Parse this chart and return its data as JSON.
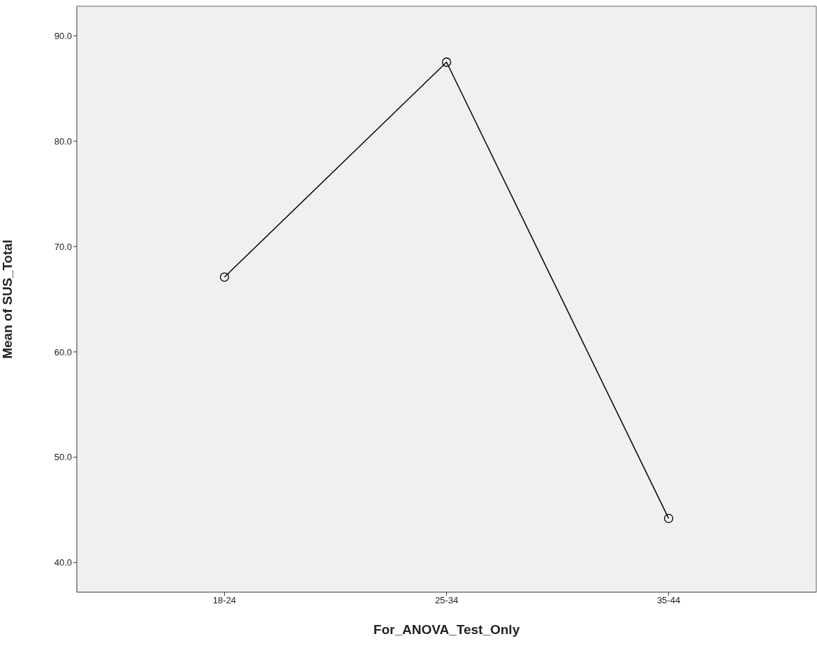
{
  "chart_data": {
    "type": "line",
    "xlabel": "For_ANOVA_Test_Only",
    "ylabel": "Mean of SUS_Total",
    "categories": [
      "18-24",
      "25-34",
      "35-44"
    ],
    "series": [
      {
        "color": "#000000",
        "values": [
          67.1,
          87.5,
          44.2
        ]
      }
    ],
    "ylim": [
      37.2,
      92.8
    ],
    "yticks": [
      {
        "value": 40,
        "label": "40.0"
      },
      {
        "value": 50,
        "label": "50.0"
      },
      {
        "value": 60,
        "label": "60.0"
      },
      {
        "value": 70,
        "label": "70.0"
      },
      {
        "value": 80,
        "label": "80.0"
      },
      {
        "value": 90,
        "label": "90.0"
      }
    ],
    "marker": "circle",
    "line_style": "solid",
    "grid": false
  }
}
